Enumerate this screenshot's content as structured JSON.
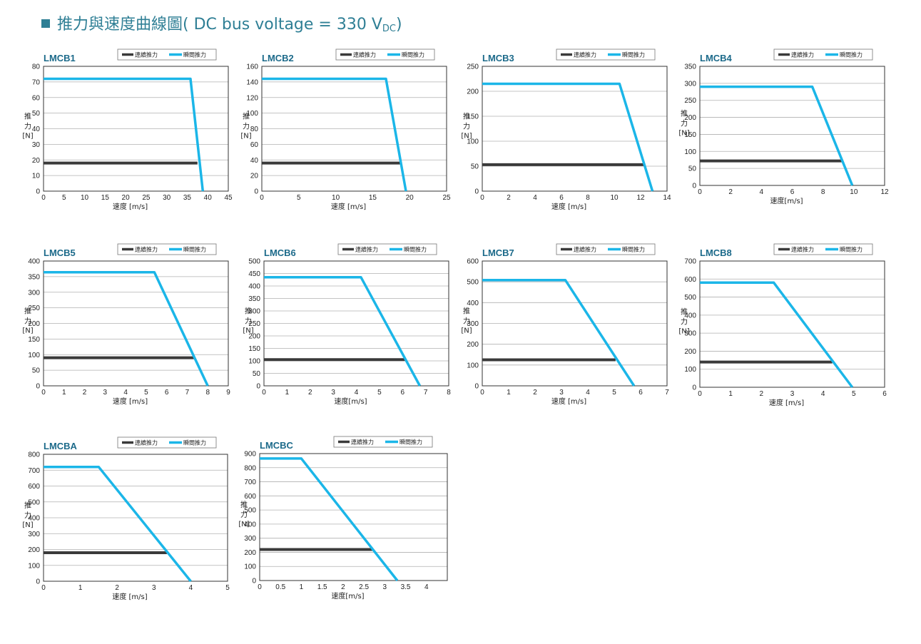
{
  "page": {
    "title_main": "推力與速度曲線圖( DC bus voltage = 330 V",
    "title_sub": "DC",
    "title_end": ")"
  },
  "colors": {
    "continuous": "#3a3a3a",
    "peak": "#1bb6e8",
    "grid": "#b0b0b0",
    "title": "#2f7f95"
  },
  "chart_data": [
    {
      "type": "line",
      "title": "LMCB1",
      "xlabel": "速度 [m/s]",
      "ylabel": [
        "推",
        "力",
        "[N]"
      ],
      "xlim": [
        0,
        45
      ],
      "ylim": [
        0,
        80
      ],
      "xticks": [
        "0",
        "5",
        "10",
        "15",
        "20",
        "25",
        "30",
        "35",
        "40",
        "45"
      ],
      "yticks": [
        "0",
        "10",
        "20",
        "30",
        "40",
        "50",
        "60",
        "70",
        "80"
      ],
      "legend": [
        "連續推力",
        "瞬間推力"
      ],
      "legend_position": "top-right",
      "grid": true,
      "series": [
        {
          "name": "連續推力",
          "points": [
            [
              0,
              18
            ],
            [
              37.5,
              18
            ]
          ]
        },
        {
          "name": "瞬間推力",
          "points": [
            [
              0,
              72
            ],
            [
              35.8,
              72
            ],
            [
              38.8,
              0
            ]
          ]
        }
      ]
    },
    {
      "type": "line",
      "title": "LMCB2",
      "xlabel": "速度 [m/s]",
      "ylabel": [
        "推",
        "力",
        "[N]"
      ],
      "xlim": [
        0,
        25
      ],
      "ylim": [
        0,
        160
      ],
      "xticks": [
        "0",
        "5",
        "10",
        "15",
        "20",
        "25"
      ],
      "yticks": [
        "0",
        "20",
        "40",
        "60",
        "80",
        "100",
        "120",
        "140",
        "160"
      ],
      "legend": [
        "連續推力",
        "瞬間推力"
      ],
      "legend_position": "top-right",
      "grid": true,
      "series": [
        {
          "name": "連續推力",
          "points": [
            [
              0,
              36
            ],
            [
              18.8,
              36
            ]
          ]
        },
        {
          "name": "瞬間推力",
          "points": [
            [
              0,
              144
            ],
            [
              16.8,
              144
            ],
            [
              19.5,
              0
            ]
          ]
        }
      ]
    },
    {
      "type": "line",
      "title": "LMCB3",
      "xlabel": "速度 [m/s]",
      "ylabel": [
        "推",
        "力",
        "[N]"
      ],
      "xlim": [
        0,
        14
      ],
      "ylim": [
        0,
        250
      ],
      "xticks": [
        "0",
        "2",
        "4",
        "6",
        "8",
        "10",
        "12",
        "14"
      ],
      "yticks": [
        "0",
        "50",
        "100",
        "150",
        "200",
        "250"
      ],
      "legend": [
        "連續推力",
        "瞬間推力"
      ],
      "legend_position": "top-right",
      "grid": true,
      "series": [
        {
          "name": "連續推力",
          "points": [
            [
              0,
              53
            ],
            [
              12.3,
              53
            ]
          ]
        },
        {
          "name": "瞬間推力",
          "points": [
            [
              0,
              215
            ],
            [
              10.4,
              215
            ],
            [
              12.9,
              0
            ]
          ]
        }
      ]
    },
    {
      "type": "line",
      "title": "LMCB4",
      "xlabel": "速度[m/s]",
      "ylabel": [
        "推",
        "力",
        "[N]"
      ],
      "xlim": [
        0,
        12
      ],
      "ylim": [
        0,
        350
      ],
      "xticks": [
        "0",
        "2",
        "4",
        "6",
        "8",
        "10",
        "12"
      ],
      "yticks": [
        "0",
        "50",
        "100",
        "150",
        "200",
        "250",
        "300",
        "350"
      ],
      "legend": [
        "連續推力",
        "瞬間推力"
      ],
      "legend_position": "top-right",
      "grid": true,
      "series": [
        {
          "name": "連續推力",
          "points": [
            [
              0,
              72
            ],
            [
              9.2,
              72
            ]
          ]
        },
        {
          "name": "瞬間推力",
          "points": [
            [
              0,
              290
            ],
            [
              7.3,
              290
            ],
            [
              9.9,
              0
            ]
          ]
        }
      ]
    },
    {
      "type": "line",
      "title": "LMCB5",
      "xlabel": "速度 [m/s]",
      "ylabel": [
        "推",
        "力",
        "[N]"
      ],
      "xlim": [
        0,
        9
      ],
      "ylim": [
        0,
        400
      ],
      "xticks": [
        "0",
        "1",
        "2",
        "3",
        "4",
        "5",
        "6",
        "7",
        "8",
        "9"
      ],
      "yticks": [
        "0",
        "50",
        "100",
        "150",
        "200",
        "250",
        "300",
        "350",
        "400"
      ],
      "legend": [
        "連續推力",
        "瞬間推力"
      ],
      "legend_position": "top-right",
      "grid": true,
      "series": [
        {
          "name": "連續推力",
          "points": [
            [
              0,
              90
            ],
            [
              7.35,
              90
            ]
          ]
        },
        {
          "name": "瞬間推力",
          "points": [
            [
              0,
              364
            ],
            [
              5.4,
              364
            ],
            [
              8.0,
              0
            ]
          ]
        }
      ]
    },
    {
      "type": "line",
      "title": "LMCB6",
      "xlabel": "速度[m/s]",
      "ylabel": [
        "推",
        "力",
        "[N]"
      ],
      "xlim": [
        0,
        8
      ],
      "ylim": [
        0,
        500
      ],
      "xticks": [
        "0",
        "1",
        "2",
        "3",
        "4",
        "5",
        "6",
        "7",
        "8"
      ],
      "yticks": [
        "0",
        "50",
        "100",
        "150",
        "200",
        "250",
        "300",
        "350",
        "400",
        "450",
        "500"
      ],
      "legend": [
        "連續推力",
        "瞬間推力"
      ],
      "legend_position": "top-right",
      "grid": true,
      "series": [
        {
          "name": "連續推力",
          "points": [
            [
              0,
              105
            ],
            [
              6.1,
              105
            ]
          ]
        },
        {
          "name": "瞬間推力",
          "points": [
            [
              0,
              435
            ],
            [
              4.2,
              435
            ],
            [
              6.75,
              0
            ]
          ]
        }
      ]
    },
    {
      "type": "line",
      "title": "LMCB7",
      "xlabel": "速度 [m/s]",
      "ylabel": [
        "推",
        "力",
        "[N]"
      ],
      "xlim": [
        0,
        7
      ],
      "ylim": [
        0,
        600
      ],
      "xticks": [
        "0",
        "1",
        "2",
        "3",
        "4",
        "5",
        "6",
        "7"
      ],
      "yticks": [
        "0",
        "100",
        "200",
        "300",
        "400",
        "500",
        "600"
      ],
      "legend": [
        "連續推力",
        "瞬間推力"
      ],
      "legend_position": "top-right",
      "grid": true,
      "series": [
        {
          "name": "連續推力",
          "points": [
            [
              0,
              125
            ],
            [
              5.05,
              125
            ]
          ]
        },
        {
          "name": "瞬間推力",
          "points": [
            [
              0,
              508
            ],
            [
              3.15,
              508
            ],
            [
              5.75,
              0
            ]
          ]
        }
      ]
    },
    {
      "type": "line",
      "title": "LMCB8",
      "xlabel": "速度 [m/s]",
      "ylabel": [
        "推",
        "力",
        "[N]"
      ],
      "xlim": [
        0,
        6
      ],
      "ylim": [
        0,
        700
      ],
      "xticks": [
        "0",
        "1",
        "2",
        "3",
        "4",
        "5",
        "6"
      ],
      "yticks": [
        "0",
        "100",
        "200",
        "300",
        "400",
        "500",
        "600",
        "700"
      ],
      "legend": [
        "連續推力",
        "瞬間推力"
      ],
      "legend_position": "top-right",
      "grid": true,
      "series": [
        {
          "name": "連續推力",
          "points": [
            [
              0,
              140
            ],
            [
              4.3,
              140
            ]
          ]
        },
        {
          "name": "瞬間推力",
          "points": [
            [
              0,
              580
            ],
            [
              2.4,
              580
            ],
            [
              4.95,
              0
            ]
          ]
        }
      ]
    },
    {
      "type": "line",
      "title": "LMCBA",
      "xlabel": "速度 [m/s]",
      "ylabel": [
        "推",
        "力",
        "[N]"
      ],
      "xlim": [
        0,
        5
      ],
      "ylim": [
        0,
        800
      ],
      "xticks": [
        "0",
        "1",
        "2",
        "3",
        "4",
        "5"
      ],
      "yticks": [
        "0",
        "100",
        "200",
        "300",
        "400",
        "500",
        "600",
        "700",
        "800"
      ],
      "legend": [
        "連續推力",
        "瞬間推力"
      ],
      "legend_position": "top-right",
      "grid": true,
      "series": [
        {
          "name": "連續推力",
          "points": [
            [
              0,
              180
            ],
            [
              3.35,
              180
            ]
          ]
        },
        {
          "name": "瞬間推力",
          "points": [
            [
              0,
              720
            ],
            [
              1.5,
              720
            ],
            [
              4.0,
              0
            ]
          ]
        }
      ]
    },
    {
      "type": "line",
      "title": "LMCBC",
      "xlabel": "速度[m/s]",
      "ylabel": [
        "推",
        "力",
        "[N]"
      ],
      "xlim": [
        0,
        4.5
      ],
      "ylim": [
        0,
        900
      ],
      "xticks": [
        "0",
        "0.5",
        "1",
        "1.5",
        "2",
        "2.5",
        "3",
        "3.5",
        "4"
      ],
      "yticks": [
        "0",
        "100",
        "200",
        "300",
        "400",
        "500",
        "600",
        "700",
        "800",
        "900"
      ],
      "legend": [
        "連續推力",
        "瞬間推力"
      ],
      "legend_position": "top-right",
      "grid": true,
      "series": [
        {
          "name": "連續推力",
          "points": [
            [
              0,
              220
            ],
            [
              2.7,
              220
            ]
          ]
        },
        {
          "name": "瞬間推力",
          "points": [
            [
              0,
              865
            ],
            [
              1.0,
              865
            ],
            [
              3.3,
              0
            ]
          ]
        }
      ]
    }
  ]
}
